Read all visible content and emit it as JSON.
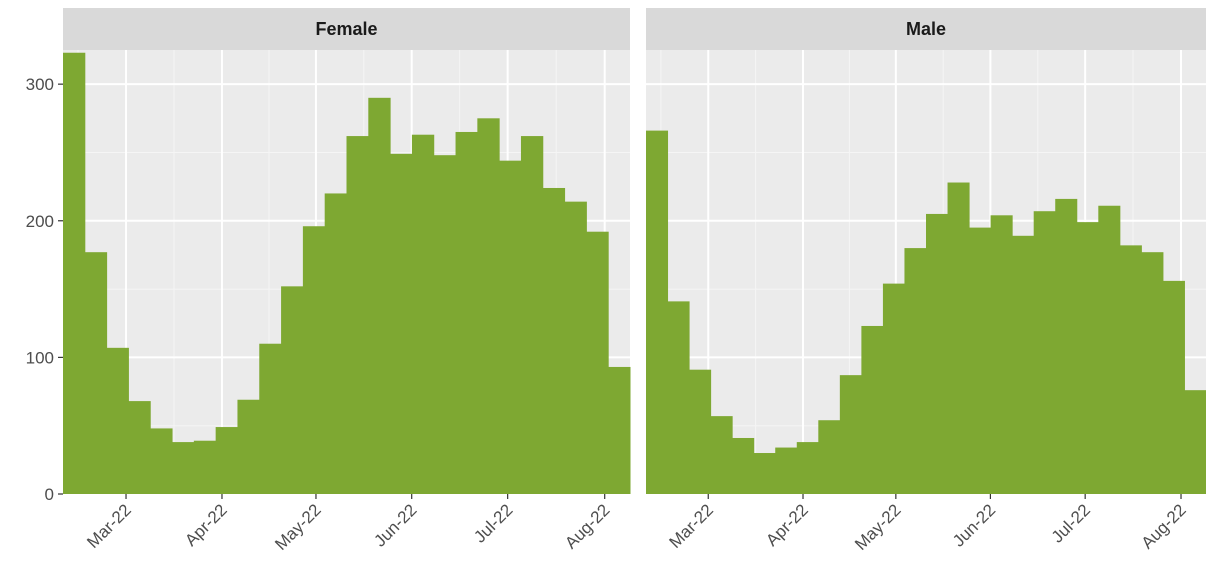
{
  "chart_data": [
    {
      "type": "histogram",
      "title": "Female",
      "color": "#7ea832",
      "bins": [
        0,
        1,
        2,
        3,
        4,
        5,
        6,
        7,
        8,
        9,
        10,
        11,
        12,
        13,
        14,
        15,
        16,
        17,
        18,
        19,
        20,
        21,
        22,
        23,
        24,
        25,
        26
      ],
      "values": [
        323,
        177,
        107,
        68,
        48,
        38,
        39,
        49,
        69,
        110,
        152,
        196,
        220,
        262,
        290,
        249,
        263,
        248,
        265,
        275,
        244,
        262,
        224,
        214,
        192,
        93
      ],
      "xlim": [
        0,
        26
      ],
      "xticks": [
        {
          "value": 2.89,
          "label": "Mar-22"
        },
        {
          "value": 7.29,
          "label": "Apr-22"
        },
        {
          "value": 11.6,
          "label": "May-22"
        },
        {
          "value": 15.99,
          "label": "Jun-22"
        },
        {
          "value": 20.39,
          "label": "Jul-22"
        },
        {
          "value": 24.84,
          "label": "Aug-22"
        }
      ],
      "ylim": [
        0,
        325
      ],
      "yticks": [
        0,
        100,
        200,
        300
      ],
      "grid": true
    },
    {
      "type": "histogram",
      "title": "Male",
      "color": "#7ea832",
      "bins": [
        0,
        1,
        2,
        3,
        4,
        5,
        6,
        7,
        8,
        9,
        10,
        11,
        12,
        13,
        14,
        15,
        16,
        17,
        18,
        19,
        20,
        21,
        22,
        23,
        24,
        25,
        26
      ],
      "values": [
        266,
        141,
        91,
        57,
        41,
        30,
        34,
        38,
        54,
        87,
        123,
        154,
        180,
        205,
        228,
        195,
        204,
        189,
        207,
        216,
        199,
        211,
        182,
        177,
        156,
        76
      ],
      "xlim": [
        0,
        26
      ],
      "xticks": [
        {
          "value": 2.89,
          "label": "Mar-22"
        },
        {
          "value": 7.29,
          "label": "Apr-22"
        },
        {
          "value": 11.6,
          "label": "May-22"
        },
        {
          "value": 15.99,
          "label": "Jun-22"
        },
        {
          "value": 20.39,
          "label": "Jul-22"
        },
        {
          "value": 24.84,
          "label": "Aug-22"
        }
      ],
      "ylim": [
        0,
        325
      ],
      "grid": true
    }
  ]
}
